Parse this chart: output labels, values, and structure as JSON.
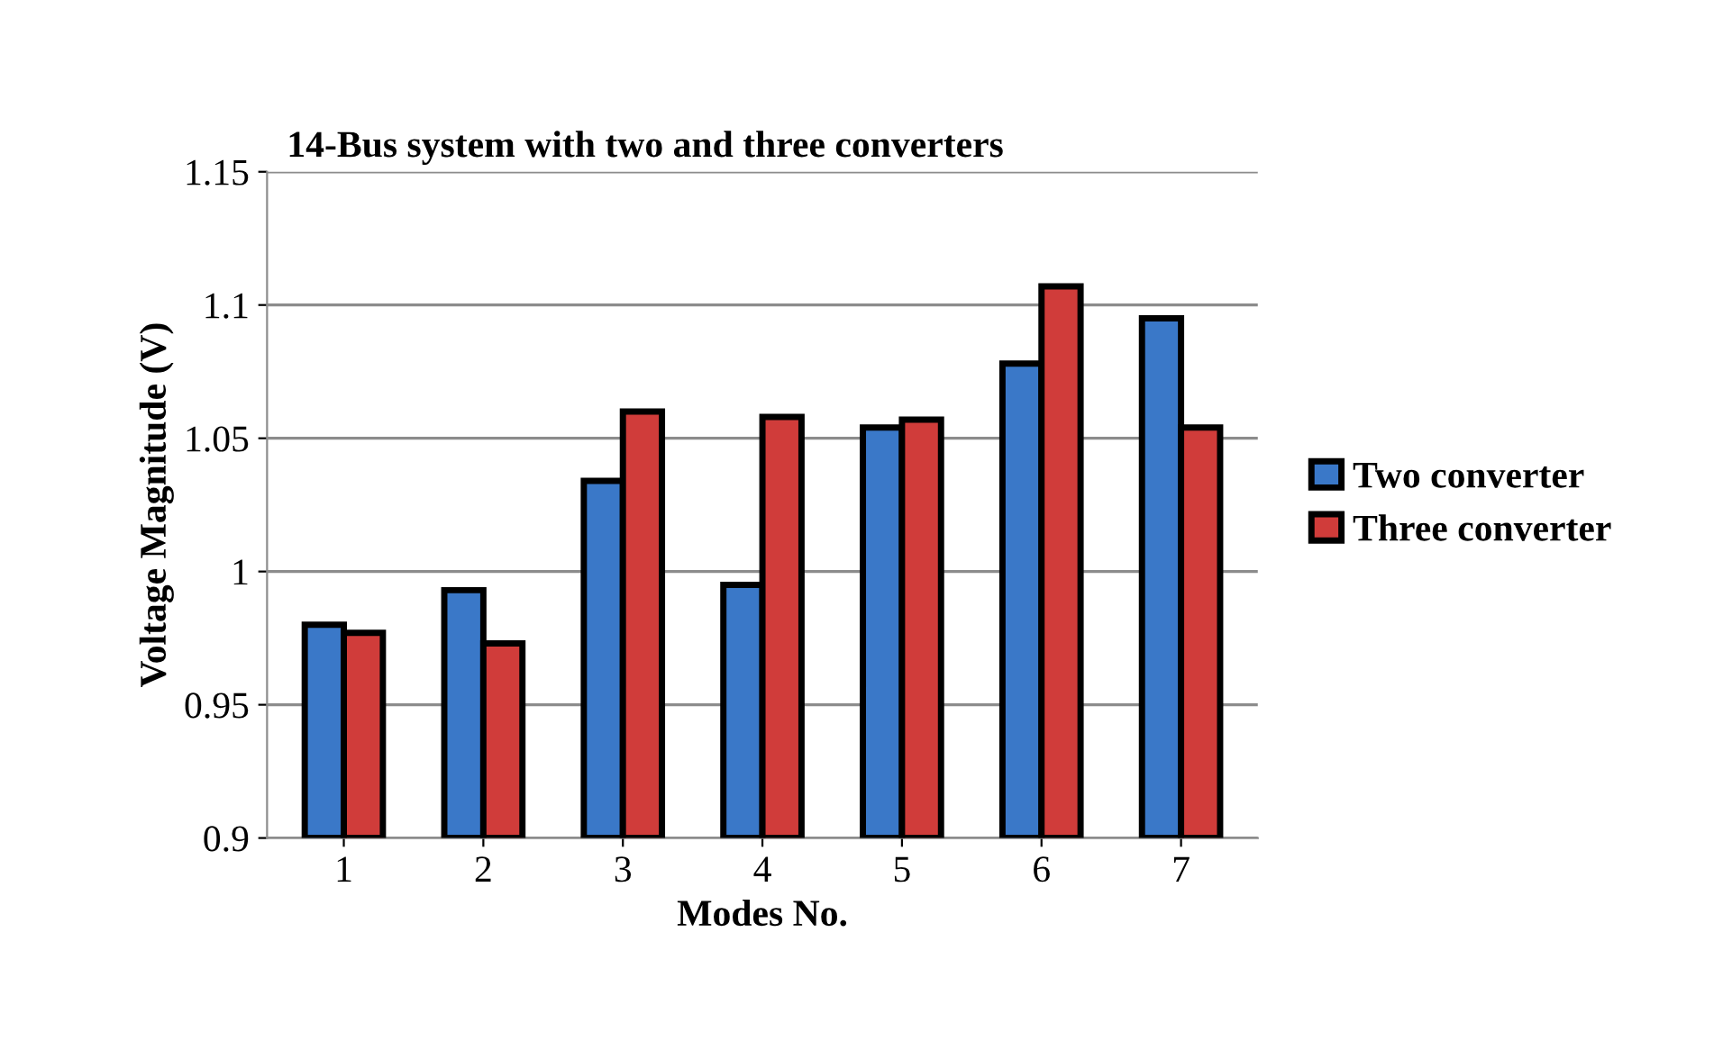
{
  "chart_data": {
    "type": "bar",
    "title": "14-Bus system with two and three converters",
    "xlabel": "Modes No.",
    "ylabel": "Voltage Magnitude (V)",
    "categories": [
      "1",
      "2",
      "3",
      "4",
      "5",
      "6",
      "7"
    ],
    "series": [
      {
        "name": "Two converter",
        "color": "#3a78c8",
        "values": [
          0.98,
          0.993,
          1.034,
          0.995,
          1.054,
          1.078,
          1.095
        ]
      },
      {
        "name": "Three converter",
        "color": "#d03c3a",
        "values": [
          0.977,
          0.973,
          1.06,
          1.058,
          1.057,
          1.107,
          1.054
        ]
      }
    ],
    "ylim": [
      0.9,
      1.15
    ],
    "yticks": [
      0.9,
      0.95,
      1,
      1.05,
      1.1,
      1.15
    ],
    "grid": "y",
    "legend": "right"
  }
}
